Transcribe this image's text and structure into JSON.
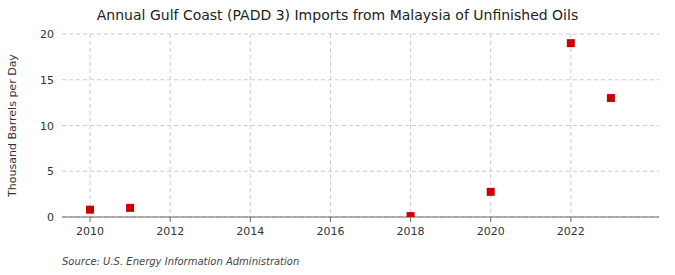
{
  "chart_data": {
    "type": "scatter",
    "title": "Annual Gulf Coast (PADD 3) Imports from Malaysia of Unfinished Oils",
    "ylabel": "Thousand Barrels per Day",
    "source": "Source: U.S. Energy Information Administration",
    "x": [
      2010,
      2011,
      2018,
      2020,
      2022,
      2023
    ],
    "values": [
      0.8,
      1.0,
      0.1,
      2.75,
      19.0,
      13.0
    ],
    "color": "#cc0000",
    "marker": "square",
    "xlim": [
      2009.3,
      2024.2
    ],
    "ylim": [
      0,
      20
    ],
    "xticks": [
      2010,
      2012,
      2014,
      2016,
      2018,
      2020,
      2022
    ],
    "yticks": [
      0,
      5,
      10,
      15,
      20
    ],
    "grid": true
  }
}
